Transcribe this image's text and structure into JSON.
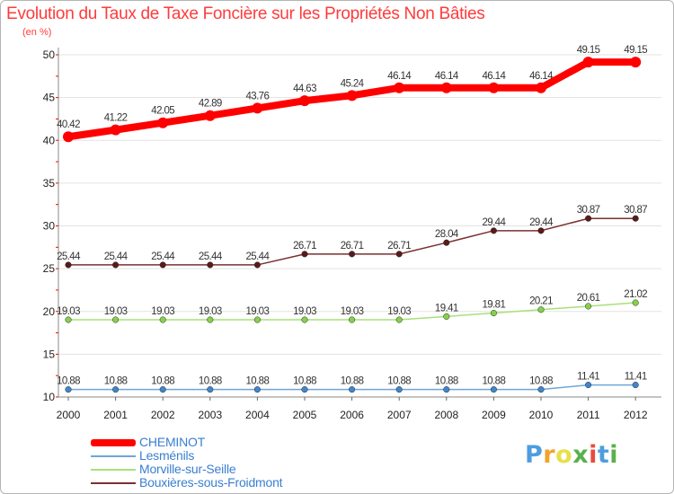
{
  "header": {
    "title": "Evolution du Taux de Taxe Foncière sur les Propriétés Non Bâties",
    "unit": "(en %)"
  },
  "logo": {
    "text": "Proxiti",
    "colors": [
      "#4d9de0",
      "#f2a32c",
      "#e8e04a",
      "#5ab04c",
      "#e84c3d",
      "#4d9de0",
      "#5ab04c"
    ]
  },
  "chart_data": {
    "type": "line",
    "title": "Evolution du Taux de Taxe Foncière sur les Propriétés Non Bâties",
    "ylabel": "(en %)",
    "xlabel": "",
    "ylim": [
      10,
      50
    ],
    "yticks": [
      10,
      15,
      20,
      25,
      30,
      35,
      40,
      45,
      50
    ],
    "categories": [
      "2000",
      "2001",
      "2002",
      "2003",
      "2004",
      "2005",
      "2006",
      "2007",
      "2008",
      "2009",
      "2010",
      "2011",
      "2012"
    ],
    "series": [
      {
        "name": "CHEMINOT",
        "color": "#ff0000",
        "point_color": "#ff0000",
        "width": 8,
        "marker": 6,
        "values": [
          40.42,
          41.22,
          42.05,
          42.89,
          43.76,
          44.63,
          45.24,
          46.14,
          46.14,
          46.14,
          46.14,
          49.15,
          49.15
        ],
        "labels": [
          "40.42",
          "41.22",
          "42.05",
          "42.89",
          "43.76",
          "44.63",
          "45.24",
          "46.14",
          "46.14",
          "46.14",
          "46.14",
          "49.15",
          "49.15"
        ]
      },
      {
        "name": "Lesménils",
        "color": "#6fa6d8",
        "point_color": "#3f86cc",
        "width": 1.5,
        "marker": 3.3,
        "values": [
          10.88,
          10.88,
          10.88,
          10.88,
          10.88,
          10.88,
          10.88,
          10.88,
          10.88,
          10.88,
          10.88,
          11.41,
          11.41
        ],
        "labels": [
          "10.88",
          "10.88",
          "10.88",
          "10.88",
          "10.88",
          "10.88",
          "10.88",
          "10.88",
          "10.88",
          "10.88",
          "10.88",
          "11.41",
          "11.41"
        ]
      },
      {
        "name": "Morville-sur-Seille",
        "color": "#a8e07a",
        "point_color": "#86d04a",
        "width": 1.5,
        "marker": 3.3,
        "values": [
          19.03,
          19.03,
          19.03,
          19.03,
          19.03,
          19.03,
          19.03,
          19.03,
          19.41,
          19.81,
          20.21,
          20.61,
          21.02
        ],
        "labels": [
          "19.03",
          "19.03",
          "19.03",
          "19.03",
          "19.03",
          "19.03",
          "19.03",
          "19.03",
          "19.41",
          "19.81",
          "20.21",
          "20.61",
          "21.02"
        ]
      },
      {
        "name": "Bouxières-sous-Froidmont",
        "color": "#7a3030",
        "point_color": "#5a1a1a",
        "width": 1.5,
        "marker": 3.3,
        "values": [
          25.44,
          25.44,
          25.44,
          25.44,
          25.44,
          26.71,
          26.71,
          26.71,
          28.04,
          29.44,
          29.44,
          30.87,
          30.87
        ],
        "labels": [
          "25.44",
          "25.44",
          "25.44",
          "25.44",
          "25.44",
          "26.71",
          "26.71",
          "26.71",
          "28.04",
          "29.44",
          "29.44",
          "30.87",
          "30.87"
        ]
      }
    ]
  }
}
